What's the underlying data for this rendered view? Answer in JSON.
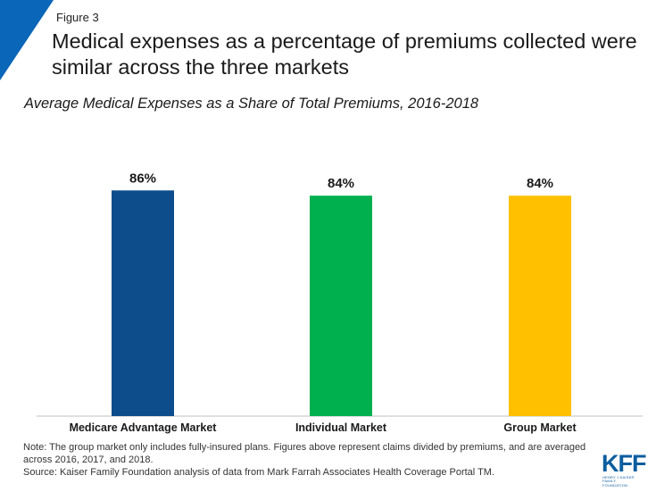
{
  "figure_label": "Figure 3",
  "headline": "Medical expenses as a percentage of premiums collected were similar across the three markets",
  "colors": {
    "accent": "#0a66b8",
    "axis": "#bfbfbf"
  },
  "chart_data": {
    "type": "bar",
    "title": "Average Medical Expenses as a Share of Total Premiums, 2016-2018",
    "categories": [
      "Medicare Advantage Market",
      "Individual Market",
      "Group Market"
    ],
    "values": [
      86,
      84,
      84
    ],
    "value_labels": [
      "86%",
      "84%",
      "84%"
    ],
    "colors": [
      "#0e4d8c",
      "#00b04f",
      "#ffc000"
    ],
    "ylim": [
      0,
      100
    ],
    "xlabel": "",
    "ylabel": "",
    "grid": false
  },
  "notes": {
    "note": "Note: The group market only includes fully-insured plans. Figures above represent claims divided by premiums, and are averaged across 2016, 2017, and 2018.",
    "source": "Source: Kaiser Family Foundation analysis of data from Mark Farrah Associates Health Coverage Portal TM."
  },
  "logo": {
    "letters": "KFF",
    "tagline": "HENRY J KAISER FAMILY FOUNDATION"
  }
}
